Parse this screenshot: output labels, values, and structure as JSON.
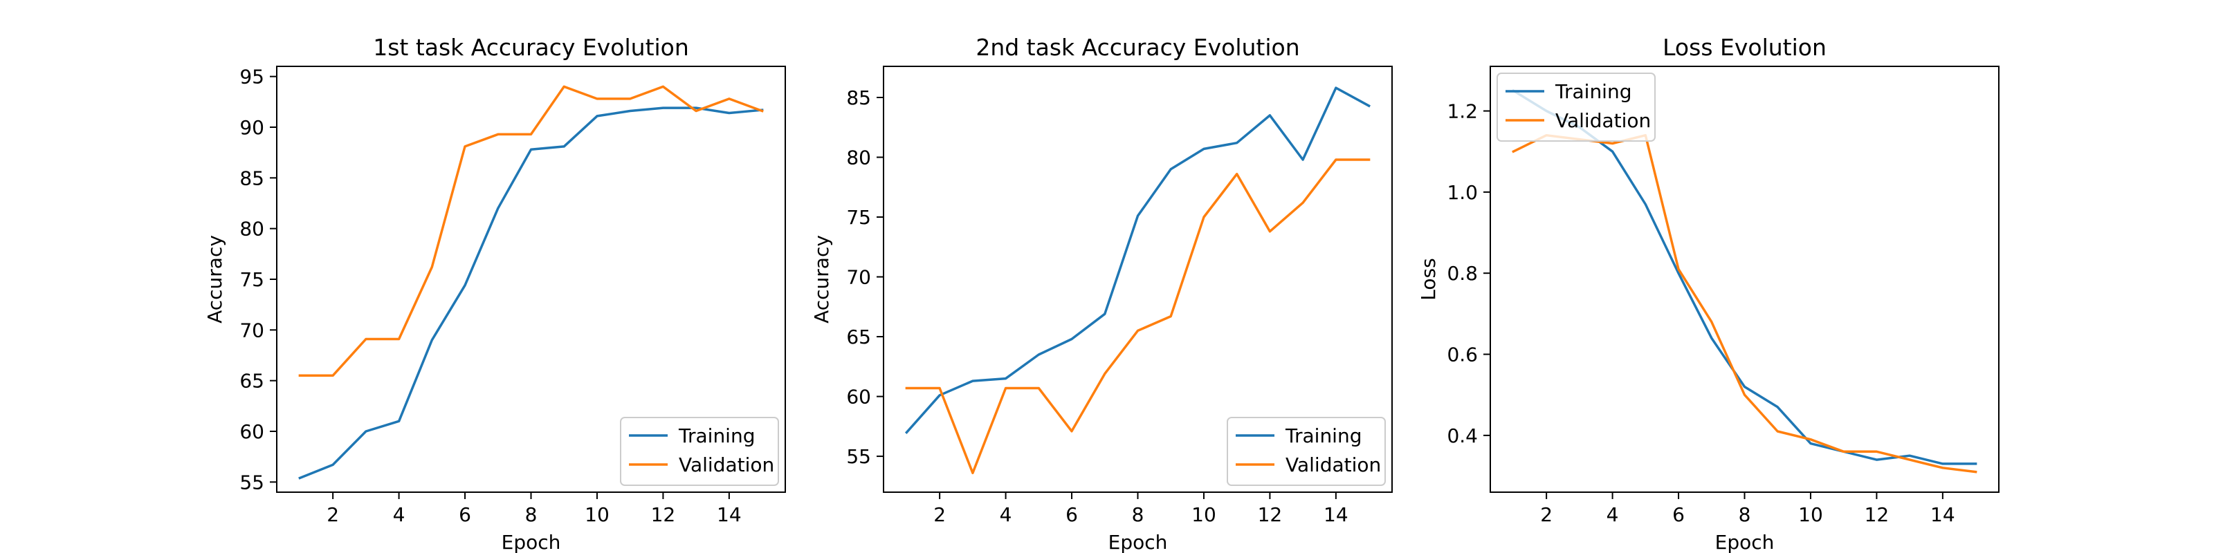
{
  "colors": {
    "training": "#1f77b4",
    "validation": "#ff7f0e",
    "axes": "#000000",
    "background": "#ffffff"
  },
  "chart_data": [
    {
      "type": "line",
      "title": "1st task Accuracy Evolution",
      "xlabel": "Epoch",
      "ylabel": "Accuracy",
      "xlim": [
        0.3,
        15.7
      ],
      "ylim": [
        54.0,
        96.0
      ],
      "xticks": [
        2,
        4,
        6,
        8,
        10,
        12,
        14
      ],
      "yticks": [
        55,
        60,
        65,
        70,
        75,
        80,
        85,
        90,
        95
      ],
      "legend": "lower-right",
      "grid": false,
      "x": [
        1,
        2,
        3,
        4,
        5,
        6,
        7,
        8,
        9,
        10,
        11,
        12,
        13,
        14,
        15
      ],
      "series": [
        {
          "name": "Training",
          "values": [
            55.4,
            56.7,
            60.0,
            61.0,
            69.0,
            74.4,
            82.0,
            87.8,
            88.1,
            91.1,
            91.6,
            91.9,
            91.9,
            91.4,
            91.7
          ]
        },
        {
          "name": "Validation",
          "values": [
            65.5,
            65.5,
            69.1,
            69.1,
            76.2,
            88.1,
            89.3,
            89.3,
            94.0,
            92.8,
            92.8,
            94.0,
            91.6,
            92.8,
            91.6
          ]
        }
      ]
    },
    {
      "type": "line",
      "title": "2nd task Accuracy Evolution",
      "xlabel": "Epoch",
      "ylabel": "Accuracy",
      "xlim": [
        0.3,
        15.7
      ],
      "ylim": [
        52.0,
        87.6
      ],
      "xticks": [
        2,
        4,
        6,
        8,
        10,
        12,
        14
      ],
      "yticks": [
        55,
        60,
        65,
        70,
        75,
        80,
        85
      ],
      "legend": "lower-right",
      "grid": false,
      "x": [
        1,
        2,
        3,
        4,
        5,
        6,
        7,
        8,
        9,
        10,
        11,
        12,
        13,
        14,
        15
      ],
      "series": [
        {
          "name": "Training",
          "values": [
            57.0,
            60.1,
            61.3,
            61.5,
            63.5,
            64.8,
            66.9,
            75.1,
            79.0,
            80.7,
            81.2,
            83.5,
            79.8,
            85.8,
            84.3
          ]
        },
        {
          "name": "Validation",
          "values": [
            60.7,
            60.7,
            53.6,
            60.7,
            60.7,
            57.1,
            61.9,
            65.5,
            66.7,
            75.0,
            78.6,
            73.8,
            76.2,
            79.8,
            79.8
          ]
        }
      ]
    },
    {
      "type": "line",
      "title": "Loss Evolution",
      "xlabel": "Epoch",
      "ylabel": "Loss",
      "xlim": [
        0.3,
        15.7
      ],
      "ylim": [
        0.26,
        1.31
      ],
      "xticks": [
        2,
        4,
        6,
        8,
        10,
        12,
        14
      ],
      "yticks": [
        "0.4",
        "0.6",
        "0.8",
        "1.0",
        "1.2"
      ],
      "legend": "upper-left",
      "grid": false,
      "x": [
        1,
        2,
        3,
        4,
        5,
        6,
        7,
        8,
        9,
        10,
        11,
        12,
        13,
        14,
        15
      ],
      "series": [
        {
          "name": "Training",
          "values": [
            1.25,
            1.2,
            1.16,
            1.1,
            0.97,
            0.8,
            0.64,
            0.52,
            0.47,
            0.38,
            0.36,
            0.34,
            0.35,
            0.33,
            0.33
          ]
        },
        {
          "name": "Validation",
          "values": [
            1.1,
            1.14,
            1.13,
            1.12,
            1.14,
            0.81,
            0.68,
            0.5,
            0.41,
            0.39,
            0.36,
            0.36,
            0.34,
            0.32,
            0.31
          ]
        }
      ]
    }
  ]
}
